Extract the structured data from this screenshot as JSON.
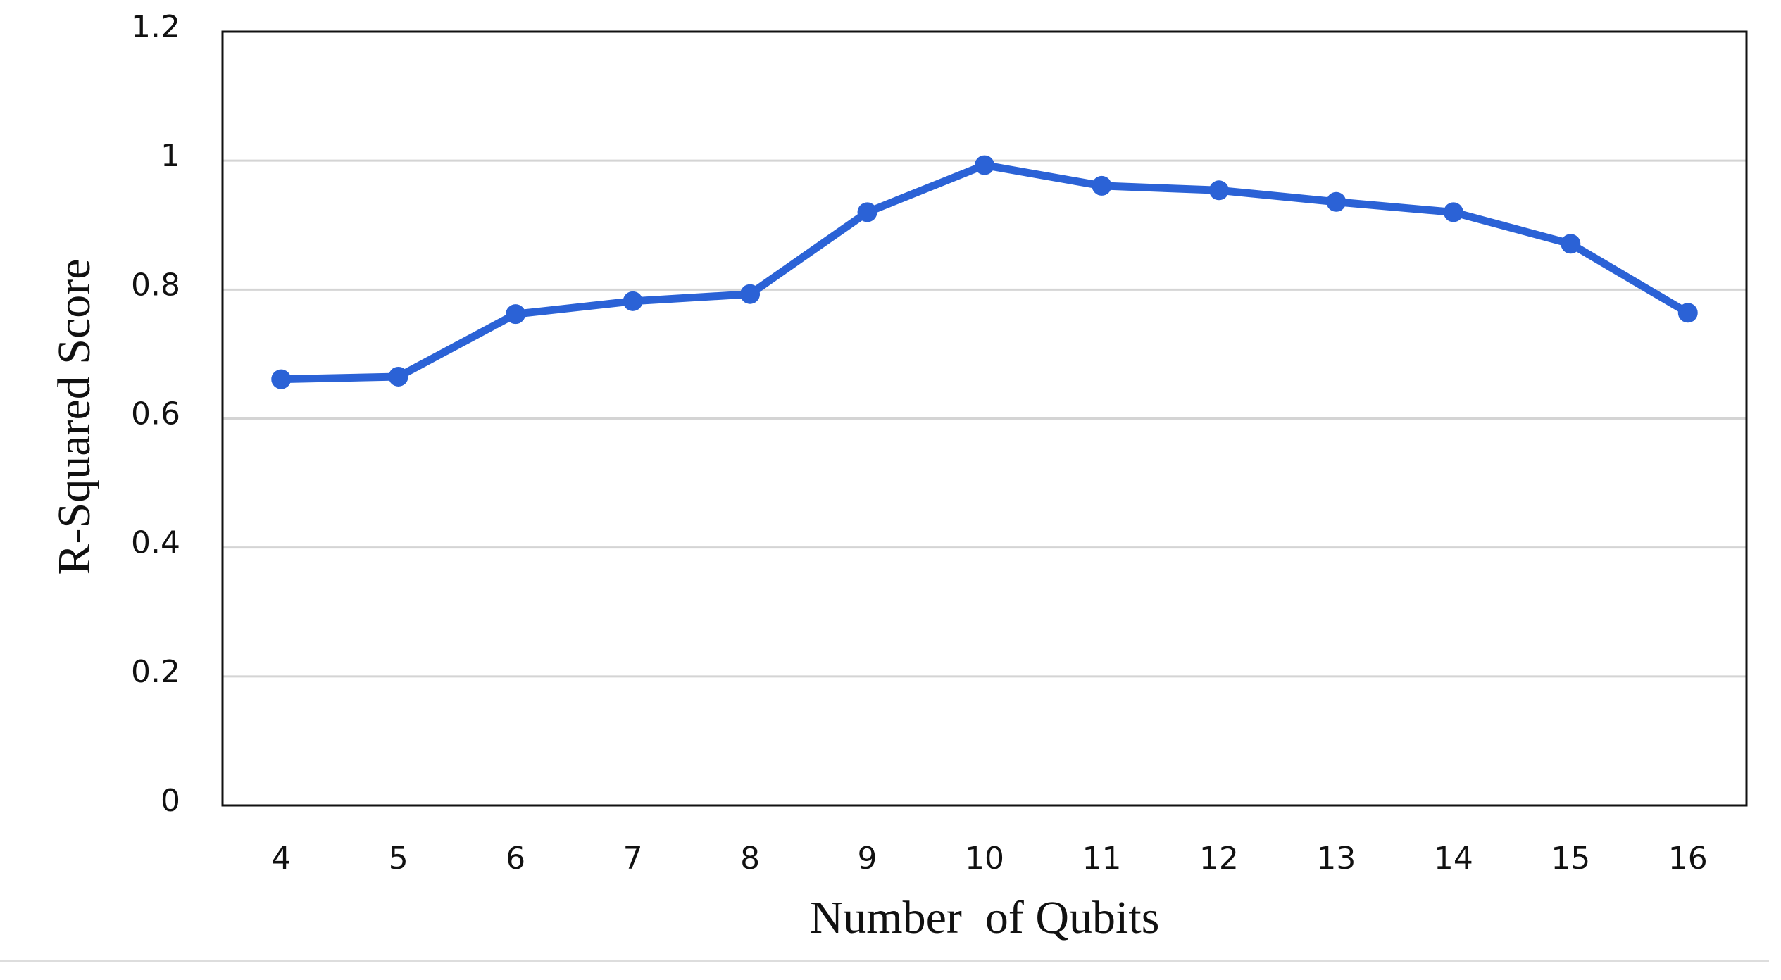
{
  "chart_data": {
    "type": "line",
    "x_label": "Number  of Qubits",
    "y_label": "R-Squared Score",
    "categories": [
      "4",
      "5",
      "6",
      "7",
      "8",
      "9",
      "10",
      "11",
      "12",
      "13",
      "14",
      "15",
      "16"
    ],
    "series": [
      {
        "color": "#2b62d6",
        "values": [
          0.661,
          0.665,
          0.762,
          0.782,
          0.793,
          0.92,
          0.993,
          0.961,
          0.954,
          0.936,
          0.92,
          0.871,
          0.764
        ]
      }
    ],
    "ylim": [
      0,
      1.2
    ],
    "yticks": [
      0,
      0.2,
      0.4,
      0.6,
      0.8,
      1,
      1.2
    ],
    "grid": true
  }
}
